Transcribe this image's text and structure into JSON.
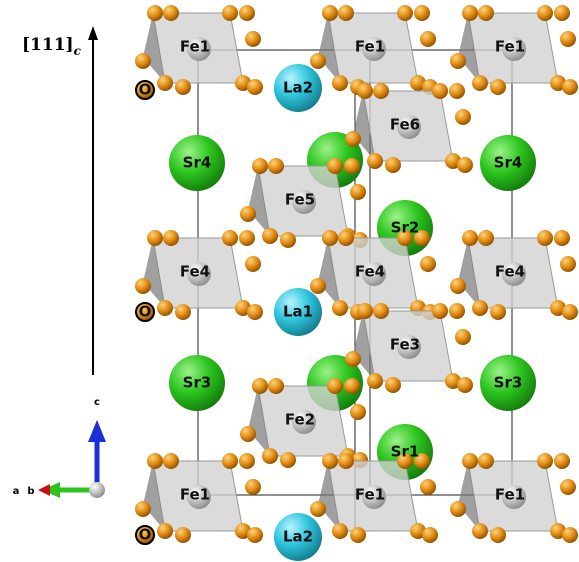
{
  "direction_label": {
    "text": "[111]",
    "subscript": "c"
  },
  "atoms": [
    {
      "label": "Fe1"
    },
    {
      "label": "Fe1"
    },
    {
      "label": "Fe1"
    },
    {
      "label": "La2"
    },
    {
      "label": "O"
    },
    {
      "label": "Fe6"
    },
    {
      "label": "Sr4"
    },
    {
      "label": "Sr4"
    },
    {
      "label": "Fe5"
    },
    {
      "label": "Sr2"
    },
    {
      "label": "Fe4"
    },
    {
      "label": "Fe4"
    },
    {
      "label": "Fe4"
    },
    {
      "label": "La1"
    },
    {
      "label": "O"
    },
    {
      "label": "Fe3"
    },
    {
      "label": "Sr3"
    },
    {
      "label": "Sr3"
    },
    {
      "label": "Fe2"
    },
    {
      "label": "Sr1"
    },
    {
      "label": "Fe1"
    },
    {
      "label": "Fe1"
    },
    {
      "label": "Fe1"
    },
    {
      "label": "La2"
    },
    {
      "label": "O"
    }
  ],
  "axes": {
    "c": "c",
    "a": "a",
    "b": "b"
  }
}
